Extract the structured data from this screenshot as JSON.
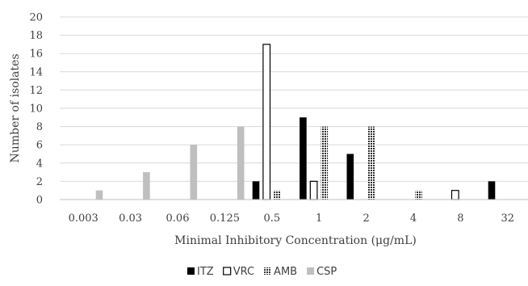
{
  "chart_data": {
    "type": "bar",
    "title": "",
    "xlabel": "Minimal Inhibitory Concentration (μg/mL)",
    "ylabel": "Number of isolates",
    "ylim": [
      0,
      20
    ],
    "yticks": [
      0,
      2,
      4,
      6,
      8,
      10,
      12,
      14,
      16,
      18,
      20
    ],
    "grid": "horizontal",
    "legend": "bottom-center",
    "categories": [
      "0.003",
      "0.03",
      "0.06",
      "0.125",
      "0.5",
      "1",
      "2",
      "4",
      "8",
      "32"
    ],
    "series": [
      {
        "name": "ITZ",
        "style": "solid",
        "color": "#000000",
        "values": [
          0,
          0,
          0,
          0,
          2,
          9,
          5,
          0,
          0,
          2
        ]
      },
      {
        "name": "VRC",
        "style": "hollow",
        "color": "#ffffff",
        "values": [
          0,
          0,
          0,
          0,
          17,
          2,
          0,
          0,
          1,
          0
        ]
      },
      {
        "name": "AMB",
        "style": "dotted",
        "color": "#303030",
        "values": [
          0,
          0,
          0,
          0,
          1,
          8,
          8,
          1,
          0,
          0
        ]
      },
      {
        "name": "CSP",
        "style": "solid",
        "color": "#bfbfbf",
        "values": [
          1,
          3,
          6,
          8,
          0,
          0,
          0,
          0,
          0,
          0
        ]
      }
    ]
  }
}
